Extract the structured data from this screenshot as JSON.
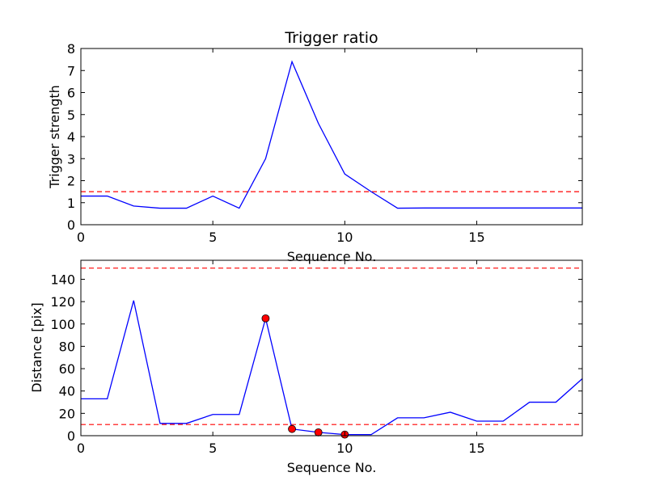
{
  "chart_data": [
    {
      "type": "line",
      "title": "Trigger ratio",
      "xlabel": "Sequence No.",
      "ylabel": "Trigger strength",
      "xlim": [
        0,
        19
      ],
      "ylim": [
        0,
        8
      ],
      "xticks": [
        0,
        5,
        10,
        15
      ],
      "yticks": [
        0,
        1,
        2,
        3,
        4,
        5,
        6,
        7,
        8
      ],
      "grid": false,
      "colors": {
        "line": "#0000ff",
        "threshold": "#ff0000"
      },
      "series": [
        {
          "x": [
            0,
            1,
            2,
            3,
            4,
            5,
            6,
            7,
            8,
            9,
            10,
            11,
            12,
            13,
            14,
            15,
            16,
            17,
            18,
            19
          ],
          "values": [
            1.3,
            1.3,
            0.85,
            0.75,
            0.75,
            1.3,
            0.75,
            3.0,
            7.4,
            4.6,
            2.3,
            1.5,
            0.75,
            0.76,
            0.76,
            0.76,
            0.76,
            0.76,
            0.76,
            0.76
          ],
          "style": "solid"
        }
      ],
      "hlines": [
        1.5
      ]
    },
    {
      "type": "line",
      "title": "",
      "xlabel": "Sequence No.",
      "ylabel": "Distance [pix]",
      "xlim": [
        0,
        19
      ],
      "ylim": [
        0,
        157
      ],
      "xticks": [
        0,
        5,
        10,
        15
      ],
      "yticks": [
        0,
        20,
        40,
        60,
        80,
        100,
        120,
        140
      ],
      "grid": false,
      "colors": {
        "line": "#0000ff",
        "threshold": "#ff0000",
        "marker": "#ff0000"
      },
      "series": [
        {
          "x": [
            0,
            1,
            2,
            3,
            4,
            5,
            6,
            7,
            8,
            9,
            10,
            11,
            12,
            13,
            14,
            15,
            16,
            17,
            18,
            19
          ],
          "values": [
            33,
            33,
            121,
            11,
            11,
            19,
            19,
            105,
            6,
            3,
            1,
            1,
            16,
            16,
            21,
            13,
            13,
            30,
            30,
            51
          ],
          "style": "solid"
        }
      ],
      "markers": {
        "x": [
          7,
          8,
          9,
          10
        ],
        "values": [
          105,
          6,
          3,
          1
        ]
      },
      "hlines": [
        10,
        150
      ]
    }
  ]
}
